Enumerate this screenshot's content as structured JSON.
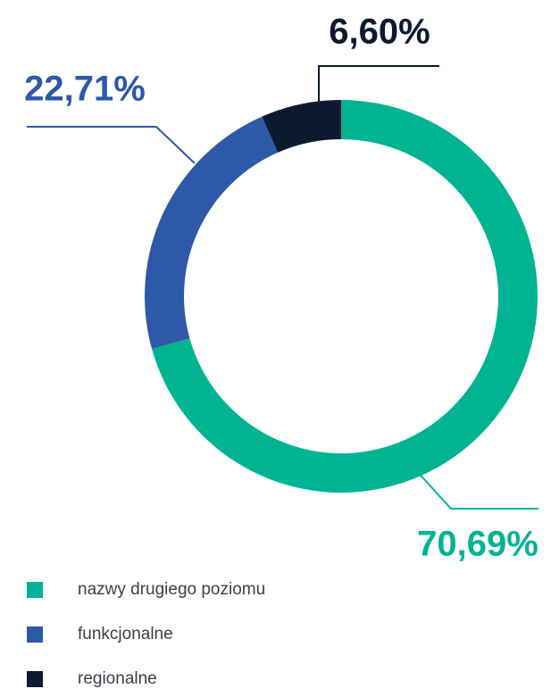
{
  "chart_data": {
    "type": "donut",
    "categories": [
      "nazwy drugiego poziomu",
      "funkcjonalne",
      "regionalne"
    ],
    "values": [
      70.69,
      22.71,
      6.6
    ],
    "value_labels": [
      "70,69%",
      "22,71%",
      "6,60%"
    ],
    "colors": [
      "#00b493",
      "#2c59a8",
      "#0b1a2e"
    ]
  }
}
